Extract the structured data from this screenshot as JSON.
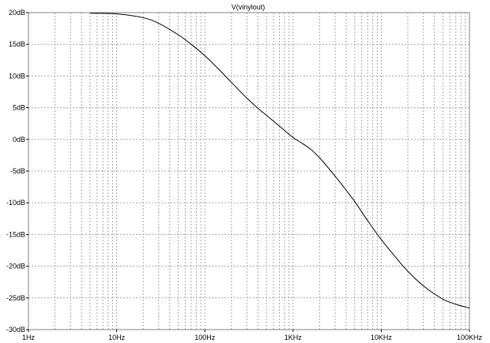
{
  "chart_data": {
    "type": "line",
    "title": "V(vinylout)",
    "xlabel": "",
    "ylabel": "",
    "x_scale": "log",
    "xlim": [
      1,
      100000
    ],
    "ylim": [
      -30,
      20
    ],
    "grid": true,
    "x_tick_labels": [
      "1Hz",
      "10Hz",
      "100Hz",
      "1KHz",
      "10KHz",
      "100KHz"
    ],
    "y_tick_labels": [
      "20dB",
      "15dB",
      "10dB",
      "5dB",
      "0dB",
      "-5dB",
      "-10dB",
      "-15dB",
      "-20dB",
      "-25dB",
      "-30dB"
    ],
    "series": [
      {
        "color": "#000000",
        "x": [
          5,
          10,
          20,
          30,
          50,
          70,
          100,
          150,
          200,
          300,
          400,
          500,
          700,
          1000,
          1500,
          2000,
          3000,
          4000,
          5000,
          7000,
          10000,
          15000,
          20000,
          30000,
          50000,
          70000,
          100000
        ],
        "y": [
          19.9,
          19.8,
          19.2,
          18.3,
          16.5,
          15.0,
          13.2,
          10.8,
          9.0,
          6.5,
          4.9,
          3.8,
          2.1,
          0.3,
          -1.3,
          -2.9,
          -5.8,
          -8.0,
          -9.8,
          -12.8,
          -15.8,
          -18.8,
          -20.8,
          -23.1,
          -25.2,
          -26.0,
          -26.6
        ]
      }
    ]
  }
}
